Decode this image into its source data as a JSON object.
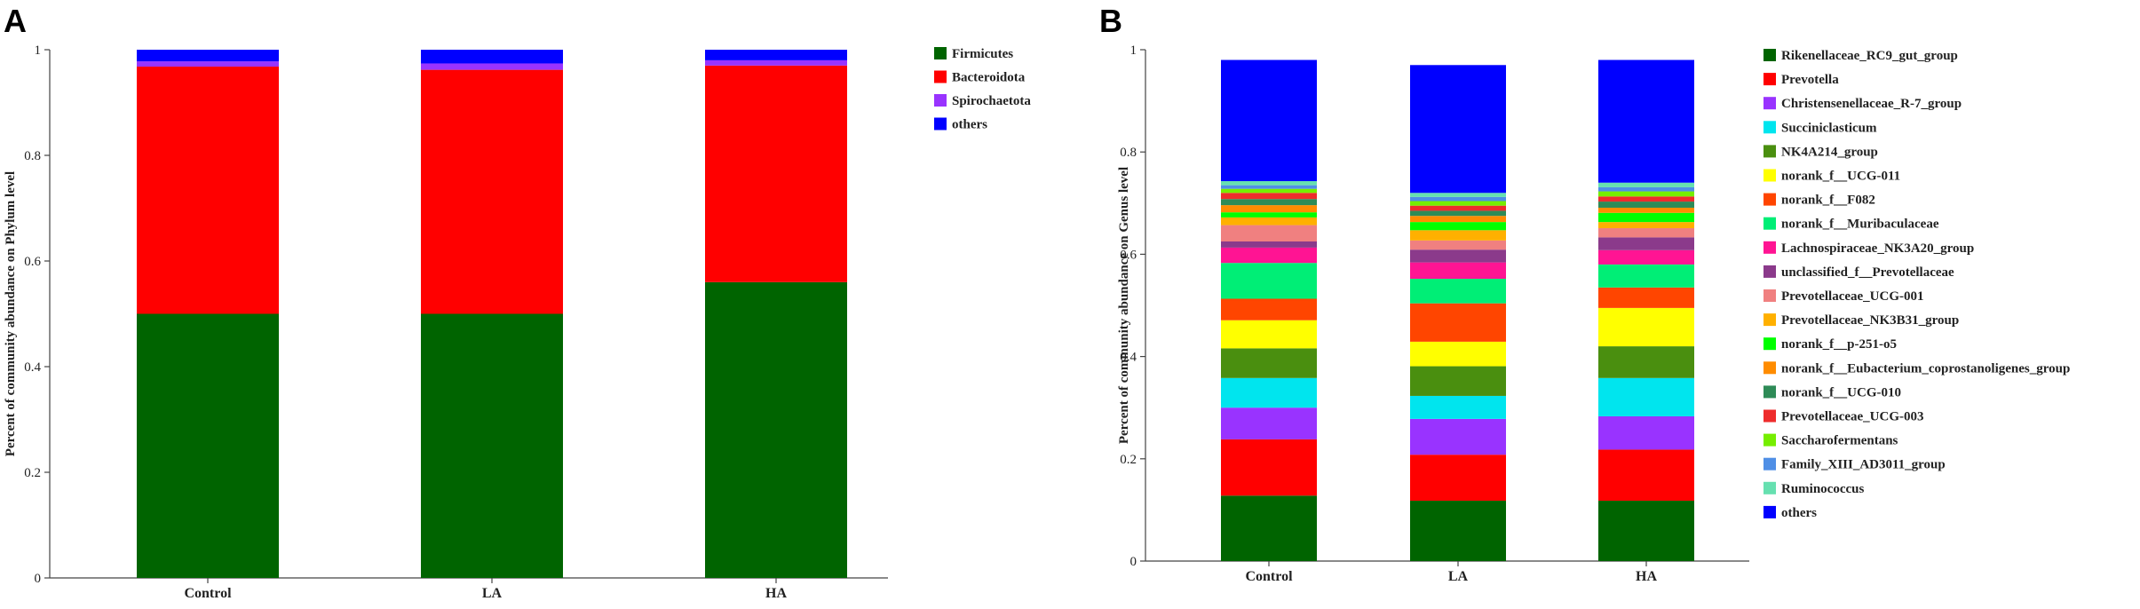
{
  "chart_data": [
    {
      "type": "bar",
      "stacked": true,
      "panel_label": "A",
      "ylabel": "Percent of community abundance on Phylum level",
      "xlabel": "",
      "ylim": [
        0,
        1
      ],
      "yticks": [
        "0",
        "0.2",
        "0.4",
        "0.6",
        "0.8",
        "1"
      ],
      "categories": [
        "Control",
        "LA",
        "HA"
      ],
      "series": [
        {
          "name": "Firmicutes",
          "color": "#006400",
          "values": [
            0.5,
            0.5,
            0.56
          ]
        },
        {
          "name": "Bacteroidota",
          "color": "#ff0000",
          "values": [
            0.468,
            0.462,
            0.41
          ]
        },
        {
          "name": "Spirochaetota",
          "color": "#9933ff",
          "values": [
            0.01,
            0.012,
            0.01
          ]
        },
        {
          "name": "others",
          "color": "#0000ff",
          "values": [
            0.022,
            0.026,
            0.02
          ]
        }
      ],
      "legend_position": "right"
    },
    {
      "type": "bar",
      "stacked": true,
      "panel_label": "B",
      "ylabel": "Percent of community abundance on Genus level",
      "xlabel": "",
      "ylim": [
        0,
        1
      ],
      "yticks": [
        "0",
        "0.2",
        "0.4",
        "0.6",
        "0.8",
        "1"
      ],
      "categories": [
        "Control",
        "LA",
        "HA"
      ],
      "series": [
        {
          "name": "Rikenellaceae_RC9_gut_group",
          "color": "#006400",
          "values": [
            0.128,
            0.118,
            0.118
          ]
        },
        {
          "name": "Prevotella",
          "color": "#ff0000",
          "values": [
            0.11,
            0.09,
            0.1
          ]
        },
        {
          "name": "Christensenellaceae_R-7_group",
          "color": "#9933ff",
          "values": [
            0.062,
            0.07,
            0.065
          ]
        },
        {
          "name": "Succiniclasticum",
          "color": "#00e5ee",
          "values": [
            0.058,
            0.045,
            0.075
          ]
        },
        {
          "name": "NK4A214_group",
          "color": "#4a8f0f",
          "values": [
            0.058,
            0.058,
            0.062
          ]
        },
        {
          "name": "norank_f__UCG-011",
          "color": "#ffff00",
          "values": [
            0.055,
            0.048,
            0.075
          ]
        },
        {
          "name": "norank_f__F082",
          "color": "#ff4500",
          "values": [
            0.042,
            0.075,
            0.04
          ]
        },
        {
          "name": "norank_f__Muribaculaceae",
          "color": "#00ee76",
          "values": [
            0.07,
            0.048,
            0.045
          ]
        },
        {
          "name": "Lachnospiraceae_NK3A20_group",
          "color": "#ff1493",
          "values": [
            0.03,
            0.032,
            0.028
          ]
        },
        {
          "name": "unclassified_f__Prevotellaceae",
          "color": "#8b3a8b",
          "values": [
            0.012,
            0.025,
            0.025
          ]
        },
        {
          "name": "Prevotellaceae_UCG-001",
          "color": "#f08080",
          "values": [
            0.032,
            0.018,
            0.018
          ]
        },
        {
          "name": "Prevotellaceae_NK3B31_group",
          "color": "#ffb000",
          "values": [
            0.015,
            0.02,
            0.012
          ]
        },
        {
          "name": "norank_f__p-251-o5",
          "color": "#00ff00",
          "values": [
            0.01,
            0.016,
            0.018
          ]
        },
        {
          "name": "norank_f__Eubacterium_coprostanoligenes_group",
          "color": "#ff8c00",
          "values": [
            0.014,
            0.012,
            0.01
          ]
        },
        {
          "name": "norank_f__UCG-010",
          "color": "#2e8b57",
          "values": [
            0.012,
            0.01,
            0.012
          ]
        },
        {
          "name": "Prevotellaceae_UCG-003",
          "color": "#ee2c2c",
          "values": [
            0.012,
            0.01,
            0.01
          ]
        },
        {
          "name": "Saccharofermentans",
          "color": "#76ee00",
          "values": [
            0.008,
            0.009,
            0.01
          ]
        },
        {
          "name": "Family_XIII_AD3011_group",
          "color": "#4f8fe6",
          "values": [
            0.007,
            0.008,
            0.008
          ]
        },
        {
          "name": "Ruminococcus",
          "color": "#66e0b0",
          "values": [
            0.008,
            0.008,
            0.009
          ]
        },
        {
          "name": "others",
          "color": "#0000ff",
          "values": [
            0.237,
            0.25,
            0.24
          ]
        }
      ],
      "legend_position": "right"
    }
  ]
}
